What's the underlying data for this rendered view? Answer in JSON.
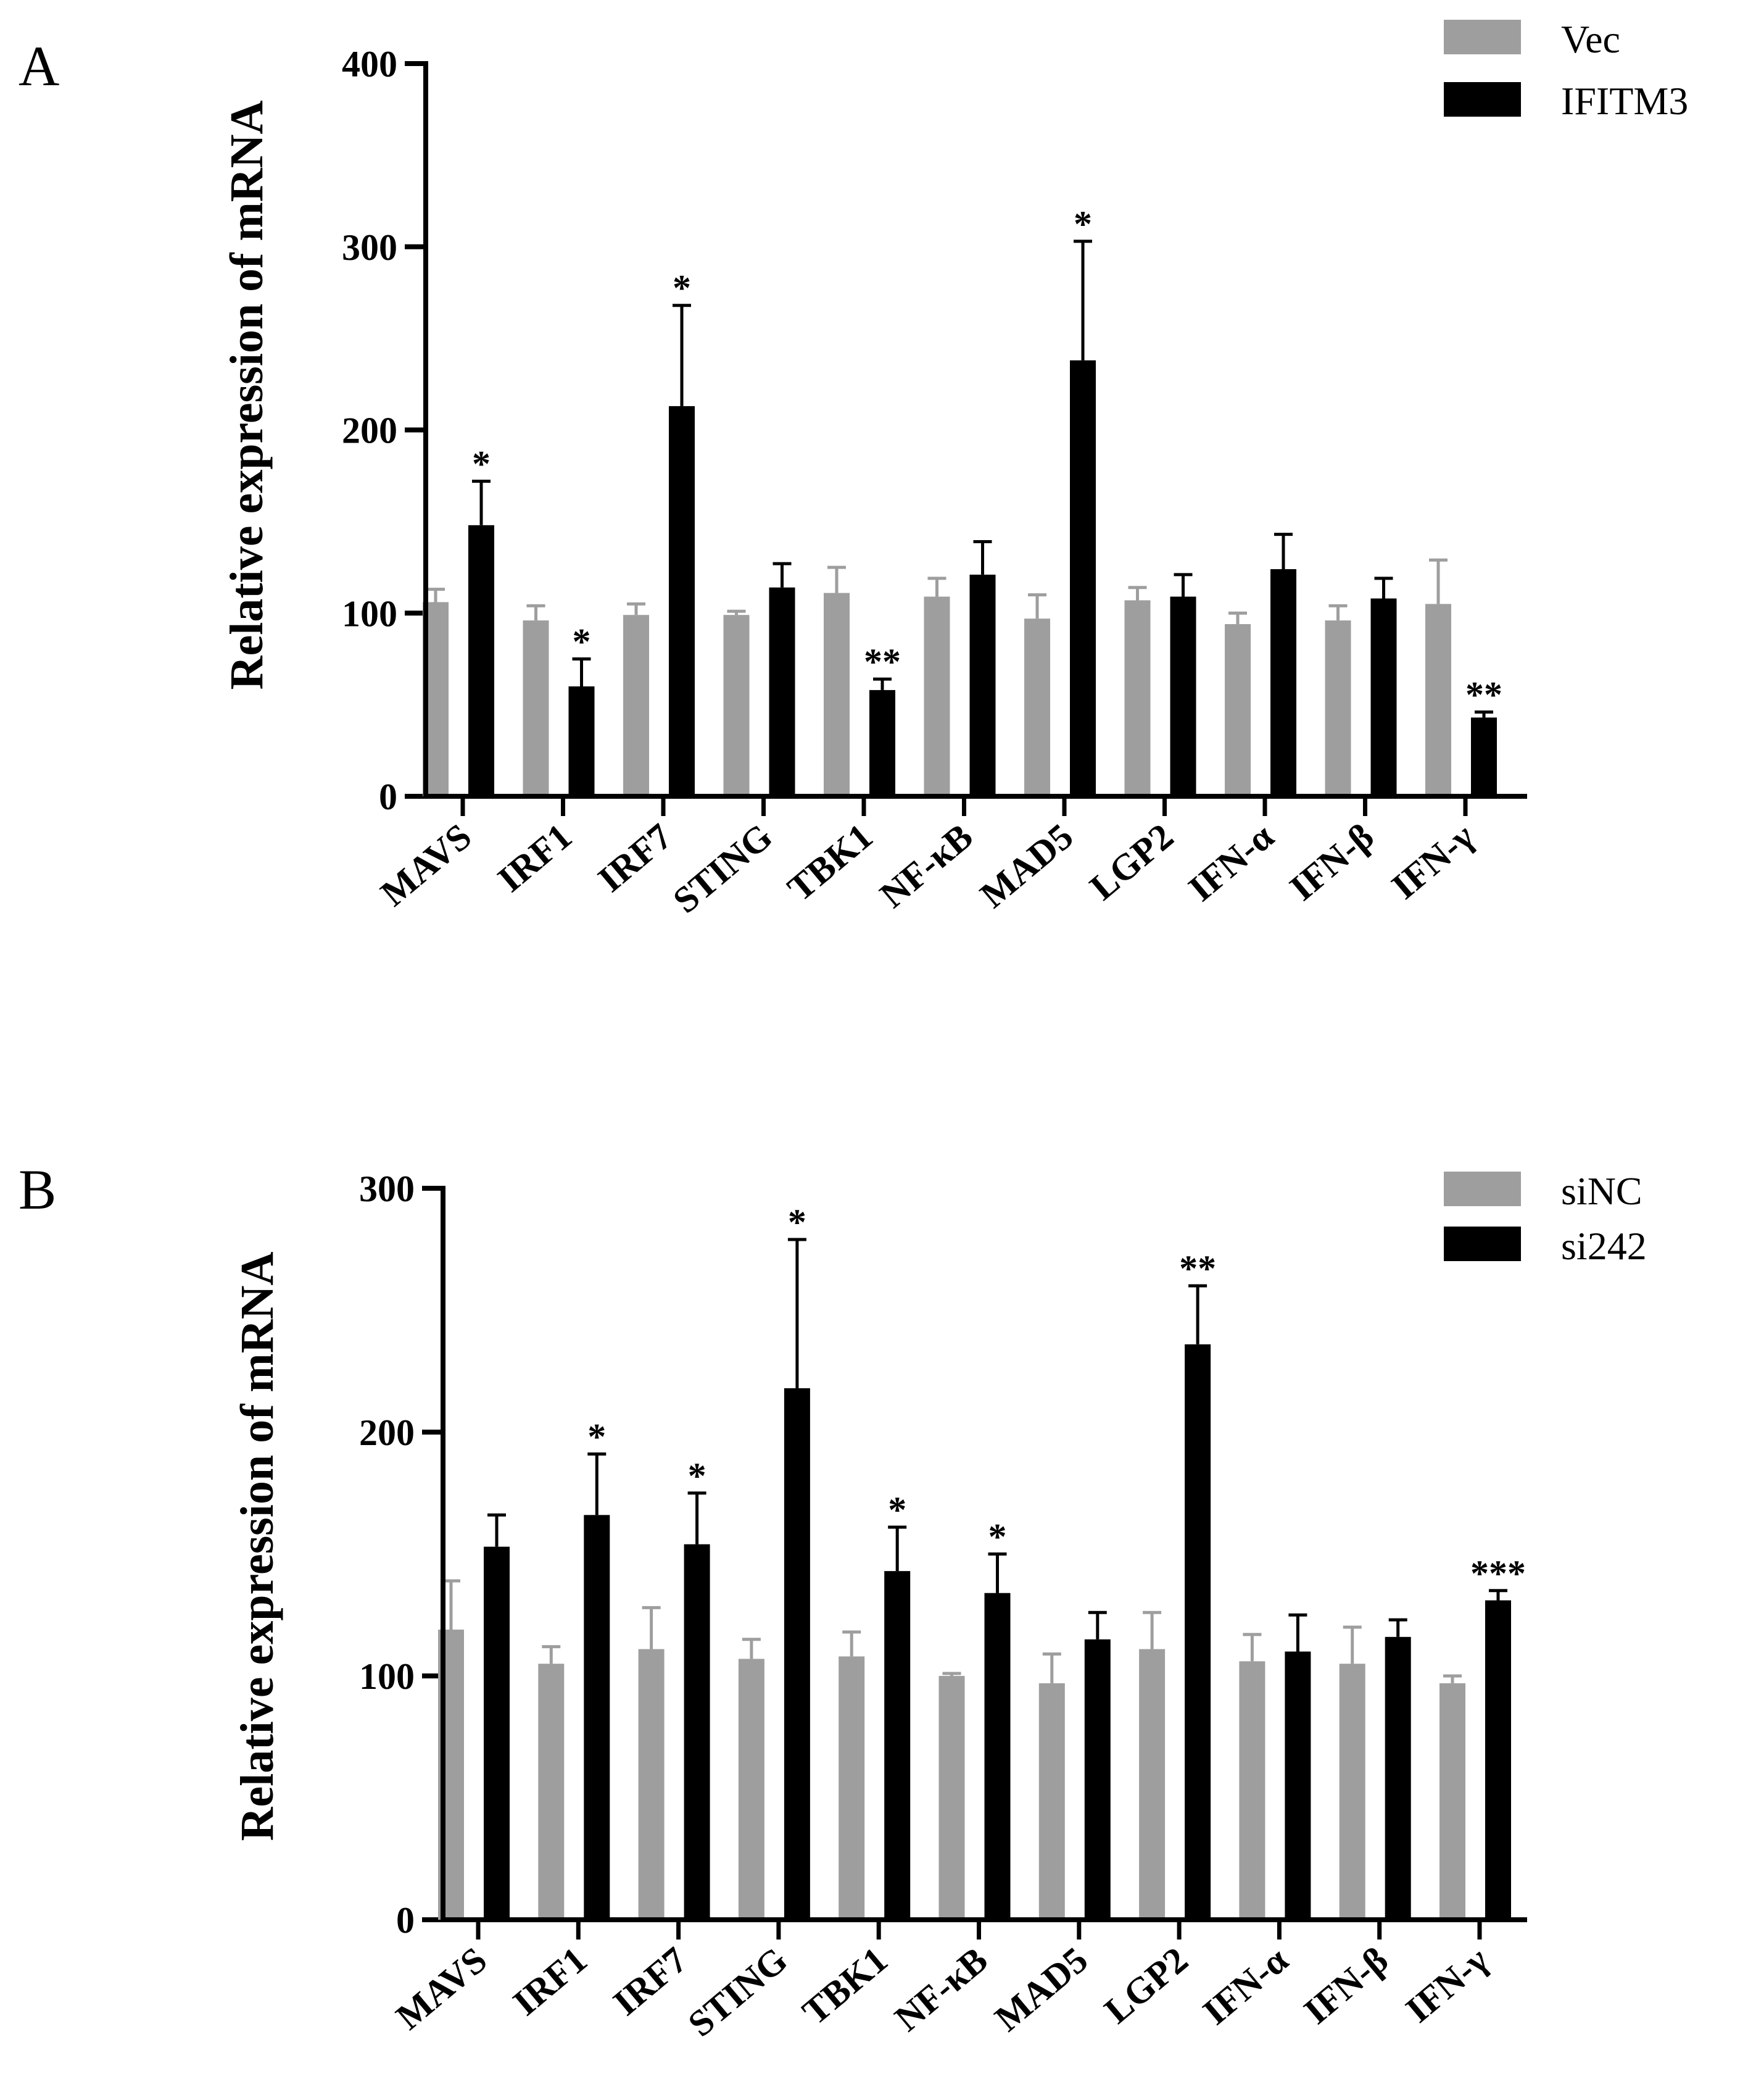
{
  "colors": {
    "control": "#9e9e9e",
    "treatment": "#000000",
    "axis": "#000000"
  },
  "chart_data": [
    {
      "type": "bar",
      "panel_label": "A",
      "ylabel": "Relative expression of mRNA",
      "xlabel": "",
      "ylim": [
        0,
        400
      ],
      "yticks": [
        0,
        100,
        200,
        300,
        400
      ],
      "yticks_labels": [
        "0",
        "100",
        "200",
        "300",
        "400"
      ],
      "categories": [
        "MAVS",
        "IRF1",
        "IRF7",
        "STING",
        "TBK1",
        "NF-κB",
        "MAD5",
        "LGP2",
        "IFN-α",
        "IFN-β",
        "IFN-γ"
      ],
      "series": [
        {
          "name": "Vec",
          "color": "#9e9e9e",
          "values": [
            106,
            96,
            99,
            99,
            111,
            109,
            97,
            107,
            94,
            96,
            105
          ],
          "errors": [
            7,
            8,
            6,
            2,
            14,
            10,
            13,
            7,
            6,
            8,
            24
          ]
        },
        {
          "name": "IFITM3",
          "color": "#000000",
          "values": [
            148,
            60,
            213,
            114,
            58,
            121,
            238,
            109,
            124,
            108,
            43
          ],
          "errors": [
            24,
            15,
            55,
            13,
            6,
            18,
            65,
            12,
            19,
            11,
            3
          ]
        }
      ],
      "significance": [
        "*",
        "*",
        "*",
        "",
        "**",
        "",
        "*",
        "",
        "",
        "",
        "**"
      ]
    },
    {
      "type": "bar",
      "panel_label": "B",
      "ylabel": "Relative expression of mRNA",
      "xlabel": "",
      "ylim": [
        0,
        300
      ],
      "yticks": [
        0,
        100,
        200,
        300
      ],
      "yticks_labels": [
        "0",
        "100",
        "200",
        "300"
      ],
      "categories": [
        "MAVS",
        "IRF1",
        "IRF7",
        "STING",
        "TBK1",
        "NF-κB",
        "MAD5",
        "LGP2",
        "IFN-α",
        "IFN-β",
        "IFN-γ"
      ],
      "series": [
        {
          "name": "siNC",
          "color": "#9e9e9e",
          "values": [
            119,
            105,
            111,
            107,
            108,
            100,
            97,
            111,
            106,
            105,
            97
          ],
          "errors": [
            20,
            7,
            17,
            8,
            10,
            1,
            12,
            15,
            11,
            15,
            3
          ]
        },
        {
          "name": "si242",
          "color": "#000000",
          "values": [
            153,
            166,
            154,
            218,
            143,
            134,
            115,
            236,
            110,
            116,
            131
          ],
          "errors": [
            13,
            25,
            21,
            61,
            18,
            16,
            11,
            24,
            15,
            7,
            4
          ]
        }
      ],
      "significance": [
        "",
        "*",
        "*",
        "*",
        "*",
        "*",
        "",
        "**",
        "",
        "",
        "***"
      ]
    }
  ]
}
